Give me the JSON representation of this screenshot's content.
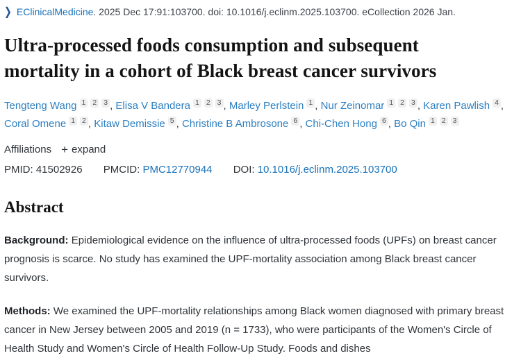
{
  "journal_row": {
    "chevron_icon": "❯",
    "journal_link": "EClinicalMedicine",
    "citation_rest": ". 2025 Dec 17:91:103700. doi: 10.1016/j.eclinm.2025.103700. eCollection 2026 Jan."
  },
  "title": "Ultra-processed foods consumption and subsequent mortality in a cohort of Black breast cancer survivors",
  "authors": [
    {
      "name": "Tengteng Wang",
      "affiliations": [
        "1",
        "2",
        "3"
      ]
    },
    {
      "name": "Elisa V Bandera",
      "affiliations": [
        "1",
        "2",
        "3"
      ]
    },
    {
      "name": "Marley Perlstein",
      "affiliations": [
        "1"
      ]
    },
    {
      "name": "Nur Zeinomar",
      "affiliations": [
        "1",
        "2",
        "3"
      ]
    },
    {
      "name": "Karen Pawlish",
      "affiliations": [
        "4"
      ]
    },
    {
      "name": "Coral Omene",
      "affiliations": [
        "1",
        "2"
      ]
    },
    {
      "name": "Kitaw Demissie",
      "affiliations": [
        "5"
      ]
    },
    {
      "name": "Christine B Ambrosone",
      "affiliations": [
        "6"
      ]
    },
    {
      "name": "Chi-Chen Hong",
      "affiliations": [
        "6"
      ]
    },
    {
      "name": "Bo Qin",
      "affiliations": [
        "1",
        "2",
        "3"
      ]
    }
  ],
  "affiliations_row": {
    "label": "Affiliations",
    "plus_icon": "+",
    "expand_label": "expand"
  },
  "identifiers": {
    "pmid_label": "PMID:",
    "pmid_value": "41502926",
    "pmcid_label": "PMCID:",
    "pmcid_value": "PMC12770944",
    "doi_label": "DOI:",
    "doi_value": "10.1016/j.eclinm.2025.103700"
  },
  "abstract": {
    "heading": "Abstract",
    "sections": [
      {
        "label": "Background:",
        "text": "Epidemiological evidence on the influence of ultra-processed foods (UPFs) on breast cancer prognosis is scarce. No study has examined the UPF-mortality association among Black breast cancer survivors."
      },
      {
        "label": "Methods:",
        "text": "We examined the UPF-mortality relationships among Black women diagnosed with primary breast cancer in New Jersey between 2005 and 2019 (n = 1733), who were participants of the Women's Circle of Health Study and Women's Circle of Health Follow-Up Study. Foods and dishes"
      }
    ]
  },
  "colors": {
    "link_blue": "#1871b8",
    "author_link_blue": "#2e7fc0",
    "chevron_blue": "#205493",
    "body_text": "#2f3338",
    "title_text": "#141414",
    "badge_bg": "#efefef"
  }
}
